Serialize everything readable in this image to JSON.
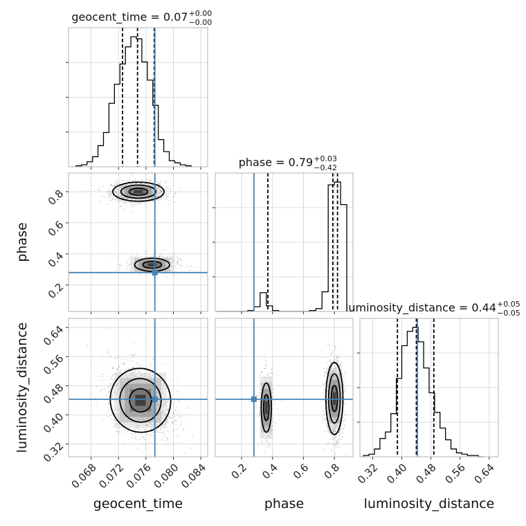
{
  "chart_data": {
    "type": "corner",
    "parameters": [
      "geocent_time",
      "phase",
      "luminosity_distance"
    ],
    "truths": {
      "geocent_time": 0.0773,
      "phase": 0.28,
      "luminosity_distance": 0.443
    },
    "truth_color": "#4682b4",
    "ranges": {
      "geocent_time": [
        0.0647,
        0.085
      ],
      "phase": [
        0.03,
        0.92
      ],
      "luminosity_distance": [
        0.285,
        0.665
      ]
    },
    "ticks": {
      "geocent_time": [
        "0.068",
        "0.072",
        "0.076",
        "0.080",
        "0.084"
      ],
      "phase": [
        "0.2",
        "0.4",
        "0.6",
        "0.8"
      ],
      "luminosity_distance": [
        "0.32",
        "0.40",
        "0.48",
        "0.56",
        "0.64"
      ]
    },
    "titles": {
      "geocent_time": {
        "main": "geocent_time = 0.07",
        "plus": "+0.00",
        "minus": "−0.00"
      },
      "phase": {
        "main": "phase = 0.79",
        "plus": "+0.03",
        "minus": "−0.42"
      },
      "luminosity_distance": {
        "main": "luminosity_distance = 0.44",
        "plus": "+0.05",
        "minus": "−0.05"
      }
    },
    "quantiles": {
      "geocent_time": [
        0.07258,
        0.07477,
        0.07721
      ],
      "phase": [
        0.37,
        0.79,
        0.82
      ],
      "luminosity_distance": [
        0.388,
        0.44,
        0.488
      ]
    },
    "histograms": {
      "geocent_time": {
        "edges": [
          0.0658,
          0.0666,
          0.0674,
          0.0682,
          0.069,
          0.0698,
          0.0706,
          0.0714,
          0.0722,
          0.073,
          0.0738,
          0.0746,
          0.0754,
          0.0762,
          0.077,
          0.0778,
          0.0786,
          0.0794,
          0.0802,
          0.081,
          0.0818,
          0.0826
        ],
        "counts": [
          1,
          2,
          5,
          10,
          21,
          34,
          63,
          82,
          102,
          119,
          129,
          127,
          104,
          86,
          61,
          27,
          15,
          6,
          4,
          2,
          1
        ]
      },
      "phase": {
        "edges": [
          0.04,
          0.08,
          0.12,
          0.16,
          0.2,
          0.24,
          0.28,
          0.32,
          0.36,
          0.4,
          0.44,
          0.48,
          0.52,
          0.56,
          0.6,
          0.64,
          0.68,
          0.72,
          0.76,
          0.8,
          0.84,
          0.88
        ],
        "counts": [
          0,
          0,
          0,
          0,
          0,
          1,
          5,
          20,
          6,
          1,
          0,
          0,
          0,
          0,
          0,
          1,
          3,
          21,
          135,
          138,
          114
        ]
      },
      "luminosity_distance": {
        "edges": [
          0.295,
          0.31,
          0.325,
          0.34,
          0.355,
          0.37,
          0.385,
          0.4,
          0.415,
          0.43,
          0.445,
          0.46,
          0.475,
          0.49,
          0.505,
          0.52,
          0.535,
          0.55,
          0.565,
          0.58,
          0.595,
          0.61,
          0.625
        ],
        "counts": [
          1,
          2,
          6,
          14,
          19,
          33,
          60,
          85,
          96,
          99,
          88,
          68,
          49,
          34,
          22,
          13,
          6,
          3,
          2,
          1,
          1,
          0
        ]
      }
    },
    "joint": [
      {
        "x": "geocent_time",
        "y": "phase",
        "clusters": [
          {
            "cx": 0.0749,
            "cy": 0.8,
            "sx": 0.0017,
            "sy": 0.028,
            "weight": 0.78
          },
          {
            "cx": 0.0769,
            "cy": 0.33,
            "sx": 0.0017,
            "sy": 0.028,
            "weight": 0.22
          }
        ]
      },
      {
        "x": "geocent_time",
        "y": "luminosity_distance",
        "clusters": [
          {
            "cx": 0.0752,
            "cy": 0.44,
            "sx": 0.002,
            "sy": 0.04,
            "weight": 1.0,
            "tilt": -0.35
          }
        ]
      },
      {
        "x": "phase",
        "y": "luminosity_distance",
        "clusters": [
          {
            "cx": 0.8,
            "cy": 0.445,
            "sx": 0.025,
            "sy": 0.045,
            "weight": 0.8
          },
          {
            "cx": 0.36,
            "cy": 0.42,
            "sx": 0.022,
            "sy": 0.045,
            "weight": 0.2
          }
        ]
      }
    ],
    "grid": true
  }
}
